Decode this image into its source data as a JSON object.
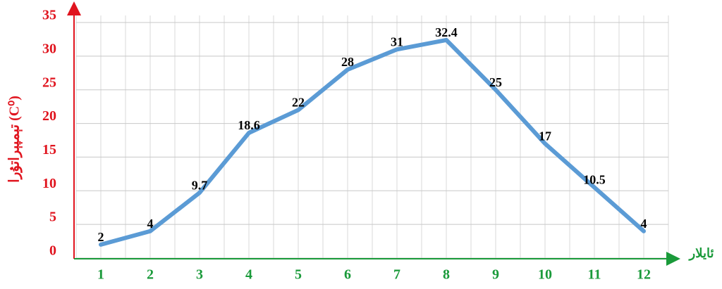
{
  "chart_data": {
    "type": "line",
    "y_axis_label": "تېمپېراتۇرا (C⁰)",
    "x_axis_label": "ئايلار",
    "categories": [
      "1",
      "2",
      "3",
      "4",
      "5",
      "6",
      "7",
      "8",
      "9",
      "10",
      "11",
      "12"
    ],
    "series": [
      {
        "color": "#5b9bd5",
        "values": [
          2,
          4,
          9.7,
          18.6,
          22,
          28,
          31,
          32.4,
          25,
          17,
          10.5,
          4
        ]
      }
    ],
    "ylim": [
      0,
      35
    ],
    "yticks": [
      0,
      5,
      10,
      15,
      20,
      25,
      30,
      35
    ],
    "grid": true
  }
}
